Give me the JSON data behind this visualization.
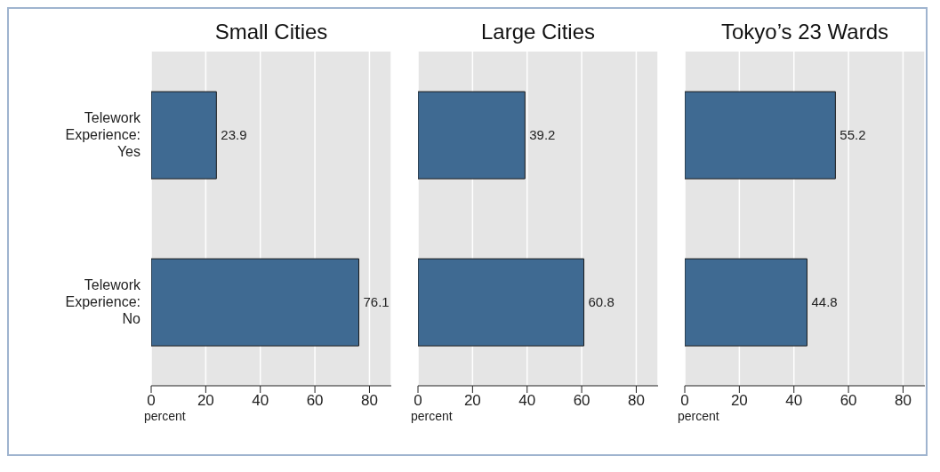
{
  "chart_data": [
    {
      "type": "bar",
      "orientation": "horizontal",
      "title": "Small Cities",
      "xlabel": "percent",
      "categories": [
        "Telework Experience: Yes",
        "Telework Experience: No"
      ],
      "values": [
        23.9,
        76.1
      ],
      "color": "#3f6a92",
      "xlim": [
        0,
        88
      ],
      "xticks": [
        0,
        20,
        40,
        60,
        80
      ],
      "grid": "x",
      "data_labels": true
    },
    {
      "type": "bar",
      "orientation": "horizontal",
      "title": "Large Cities",
      "xlabel": "percent",
      "categories": [
        null,
        null
      ],
      "values": [
        39.2,
        60.8
      ],
      "color": "#3f6a92",
      "xlim": [
        0,
        88
      ],
      "xticks": [
        0,
        20,
        40,
        60,
        80
      ],
      "grid": "x",
      "data_labels": true,
      "tick_labels": "x"
    },
    {
      "type": "bar",
      "orientation": "horizontal",
      "title": "Tokyo’s 23 Wards",
      "xlabel": "percent",
      "categories": [
        null,
        null
      ],
      "values": [
        55.2,
        44.8
      ],
      "color": "#3f6a92",
      "xlim": [
        0,
        88
      ],
      "xticks": [
        0,
        20,
        40,
        60,
        80
      ],
      "grid": "x",
      "data_labels": true,
      "tick_labels": "x"
    }
  ]
}
